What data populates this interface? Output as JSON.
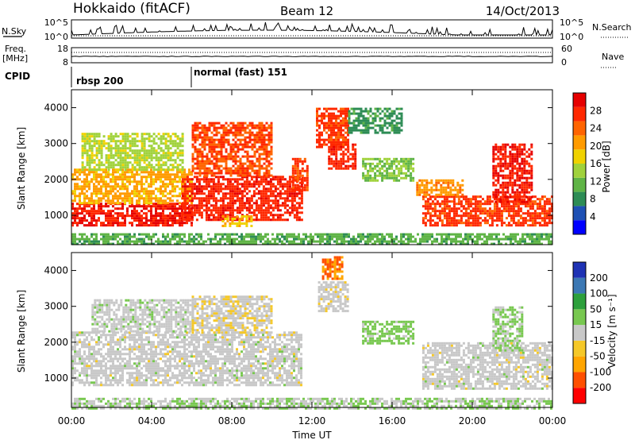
{
  "header": {
    "station": "Hokkaido (fitACF)",
    "beam": "Beam 12",
    "date": "14/Oct/2013"
  },
  "top_panels": {
    "nsky_label": "N.Sky",
    "nsky_ticks": [
      "10^5",
      "10^0"
    ],
    "nsearch_label": "N.Search",
    "nsearch_ticks": [
      "10^5",
      "10^0"
    ],
    "freq_label_line1": "Freq.",
    "freq_label_line2": "[MHz]",
    "freq_ticks": [
      "18",
      "8"
    ],
    "nave_label": "Nave",
    "nave_ticks": [
      "60",
      "0"
    ],
    "cpid_label": "CPID",
    "cpid_segments": [
      {
        "label": "rbsp 200",
        "start_hour": 0
      },
      {
        "label": "normal (fast) 151",
        "start_hour": 6
      }
    ]
  },
  "axes": {
    "xlabel": "Time UT",
    "x_ticks": [
      "00:00",
      "04:00",
      "08:00",
      "12:00",
      "16:00",
      "20:00",
      "00:00"
    ],
    "ylabel": "Slant Range [km]",
    "y_ticks": [
      "4000",
      "3000",
      "2000",
      "1000"
    ]
  },
  "colorbars": {
    "power": {
      "label": "Power [dB]",
      "ticks": [
        "28",
        "24",
        "20",
        "16",
        "12",
        "8",
        "4"
      ],
      "colors": [
        "#0000ff",
        "#1e50b4",
        "#2d8c55",
        "#5fb446",
        "#a0d23c",
        "#f0d200",
        "#ff9b00",
        "#ff6400",
        "#ff2800",
        "#e60000"
      ]
    },
    "velocity": {
      "label": "Velocity [m s⁻¹]",
      "ticks": [
        "200",
        "100",
        "50",
        "15",
        "-15",
        "-50",
        "-100",
        "-200"
      ],
      "colors": [
        "#ff0000",
        "#ff5000",
        "#ffa500",
        "#f5c828",
        "#c8c8c8",
        "#78c850",
        "#2da03c",
        "#3c78b4",
        "#1e32b4"
      ]
    }
  },
  "chart_data": [
    {
      "type": "heatmap",
      "name": "Power",
      "x_range_hours": [
        0,
        24
      ],
      "y_range_km": [
        180,
        4500
      ],
      "unit": "dB",
      "cscale": [
        0,
        30
      ],
      "regions": [
        {
          "t0": 0.0,
          "t1": 6.0,
          "r0": 750,
          "r1": 1350,
          "v": 27
        },
        {
          "t0": 0.0,
          "t1": 6.0,
          "r0": 1350,
          "r1": 2300,
          "v": 19
        },
        {
          "t0": 0.5,
          "t1": 5.5,
          "r0": 2300,
          "r1": 3300,
          "v": 14
        },
        {
          "t0": 5.5,
          "t1": 11.5,
          "r0": 900,
          "r1": 2100,
          "v": 26
        },
        {
          "t0": 6.0,
          "t1": 10.0,
          "r0": 2100,
          "r1": 3600,
          "v": 24
        },
        {
          "t0": 11.0,
          "t1": 11.8,
          "r0": 1700,
          "r1": 2600,
          "v": 25
        },
        {
          "t0": 12.2,
          "t1": 13.8,
          "r0": 2900,
          "r1": 4000,
          "v": 25
        },
        {
          "t0": 12.8,
          "t1": 14.2,
          "r0": 2300,
          "r1": 3000,
          "v": 26
        },
        {
          "t0": 14.5,
          "t1": 17.0,
          "r0": 2000,
          "r1": 2600,
          "v": 12
        },
        {
          "t0": 13.8,
          "t1": 16.5,
          "r0": 3300,
          "r1": 4000,
          "v": 8
        },
        {
          "t0": 17.5,
          "t1": 24.0,
          "r0": 700,
          "r1": 1550,
          "v": 25
        },
        {
          "t0": 17.2,
          "t1": 19.5,
          "r0": 1550,
          "r1": 2000,
          "v": 20
        },
        {
          "t0": 21.0,
          "t1": 23.0,
          "r0": 1400,
          "r1": 3000,
          "v": 27
        },
        {
          "t0": 7.5,
          "t1": 9.0,
          "r0": 700,
          "r1": 1000,
          "v": 18
        },
        {
          "t0": 0.0,
          "t1": 24.0,
          "r0": 180,
          "r1": 500,
          "v": 10
        }
      ]
    },
    {
      "type": "heatmap",
      "name": "Velocity",
      "x_range_hours": [
        0,
        24
      ],
      "y_range_km": [
        180,
        4500
      ],
      "unit": "m s-1",
      "cscale": [
        -200,
        200
      ],
      "regions": [
        {
          "t0": 0.0,
          "t1": 11.5,
          "r0": 800,
          "r1": 2300,
          "v": 0
        },
        {
          "t0": 1.0,
          "t1": 6.0,
          "r0": 2300,
          "r1": 3200,
          "v": 5
        },
        {
          "t0": 6.0,
          "t1": 10.0,
          "r0": 2300,
          "r1": 3300,
          "v": -10
        },
        {
          "t0": 12.3,
          "t1": 13.8,
          "r0": 2900,
          "r1": 3700,
          "v": -5
        },
        {
          "t0": 14.5,
          "t1": 17.0,
          "r0": 2000,
          "r1": 2600,
          "v": 40
        },
        {
          "t0": 17.5,
          "t1": 24.0,
          "r0": 700,
          "r1": 2000,
          "v": 0
        },
        {
          "t0": 21.0,
          "t1": 22.5,
          "r0": 1800,
          "r1": 3000,
          "v": 30
        },
        {
          "t0": 12.5,
          "t1": 13.5,
          "r0": 3800,
          "r1": 4400,
          "v": -120
        },
        {
          "t0": 0.0,
          "t1": 24.0,
          "r0": 180,
          "r1": 450,
          "v": 20
        }
      ]
    }
  ]
}
